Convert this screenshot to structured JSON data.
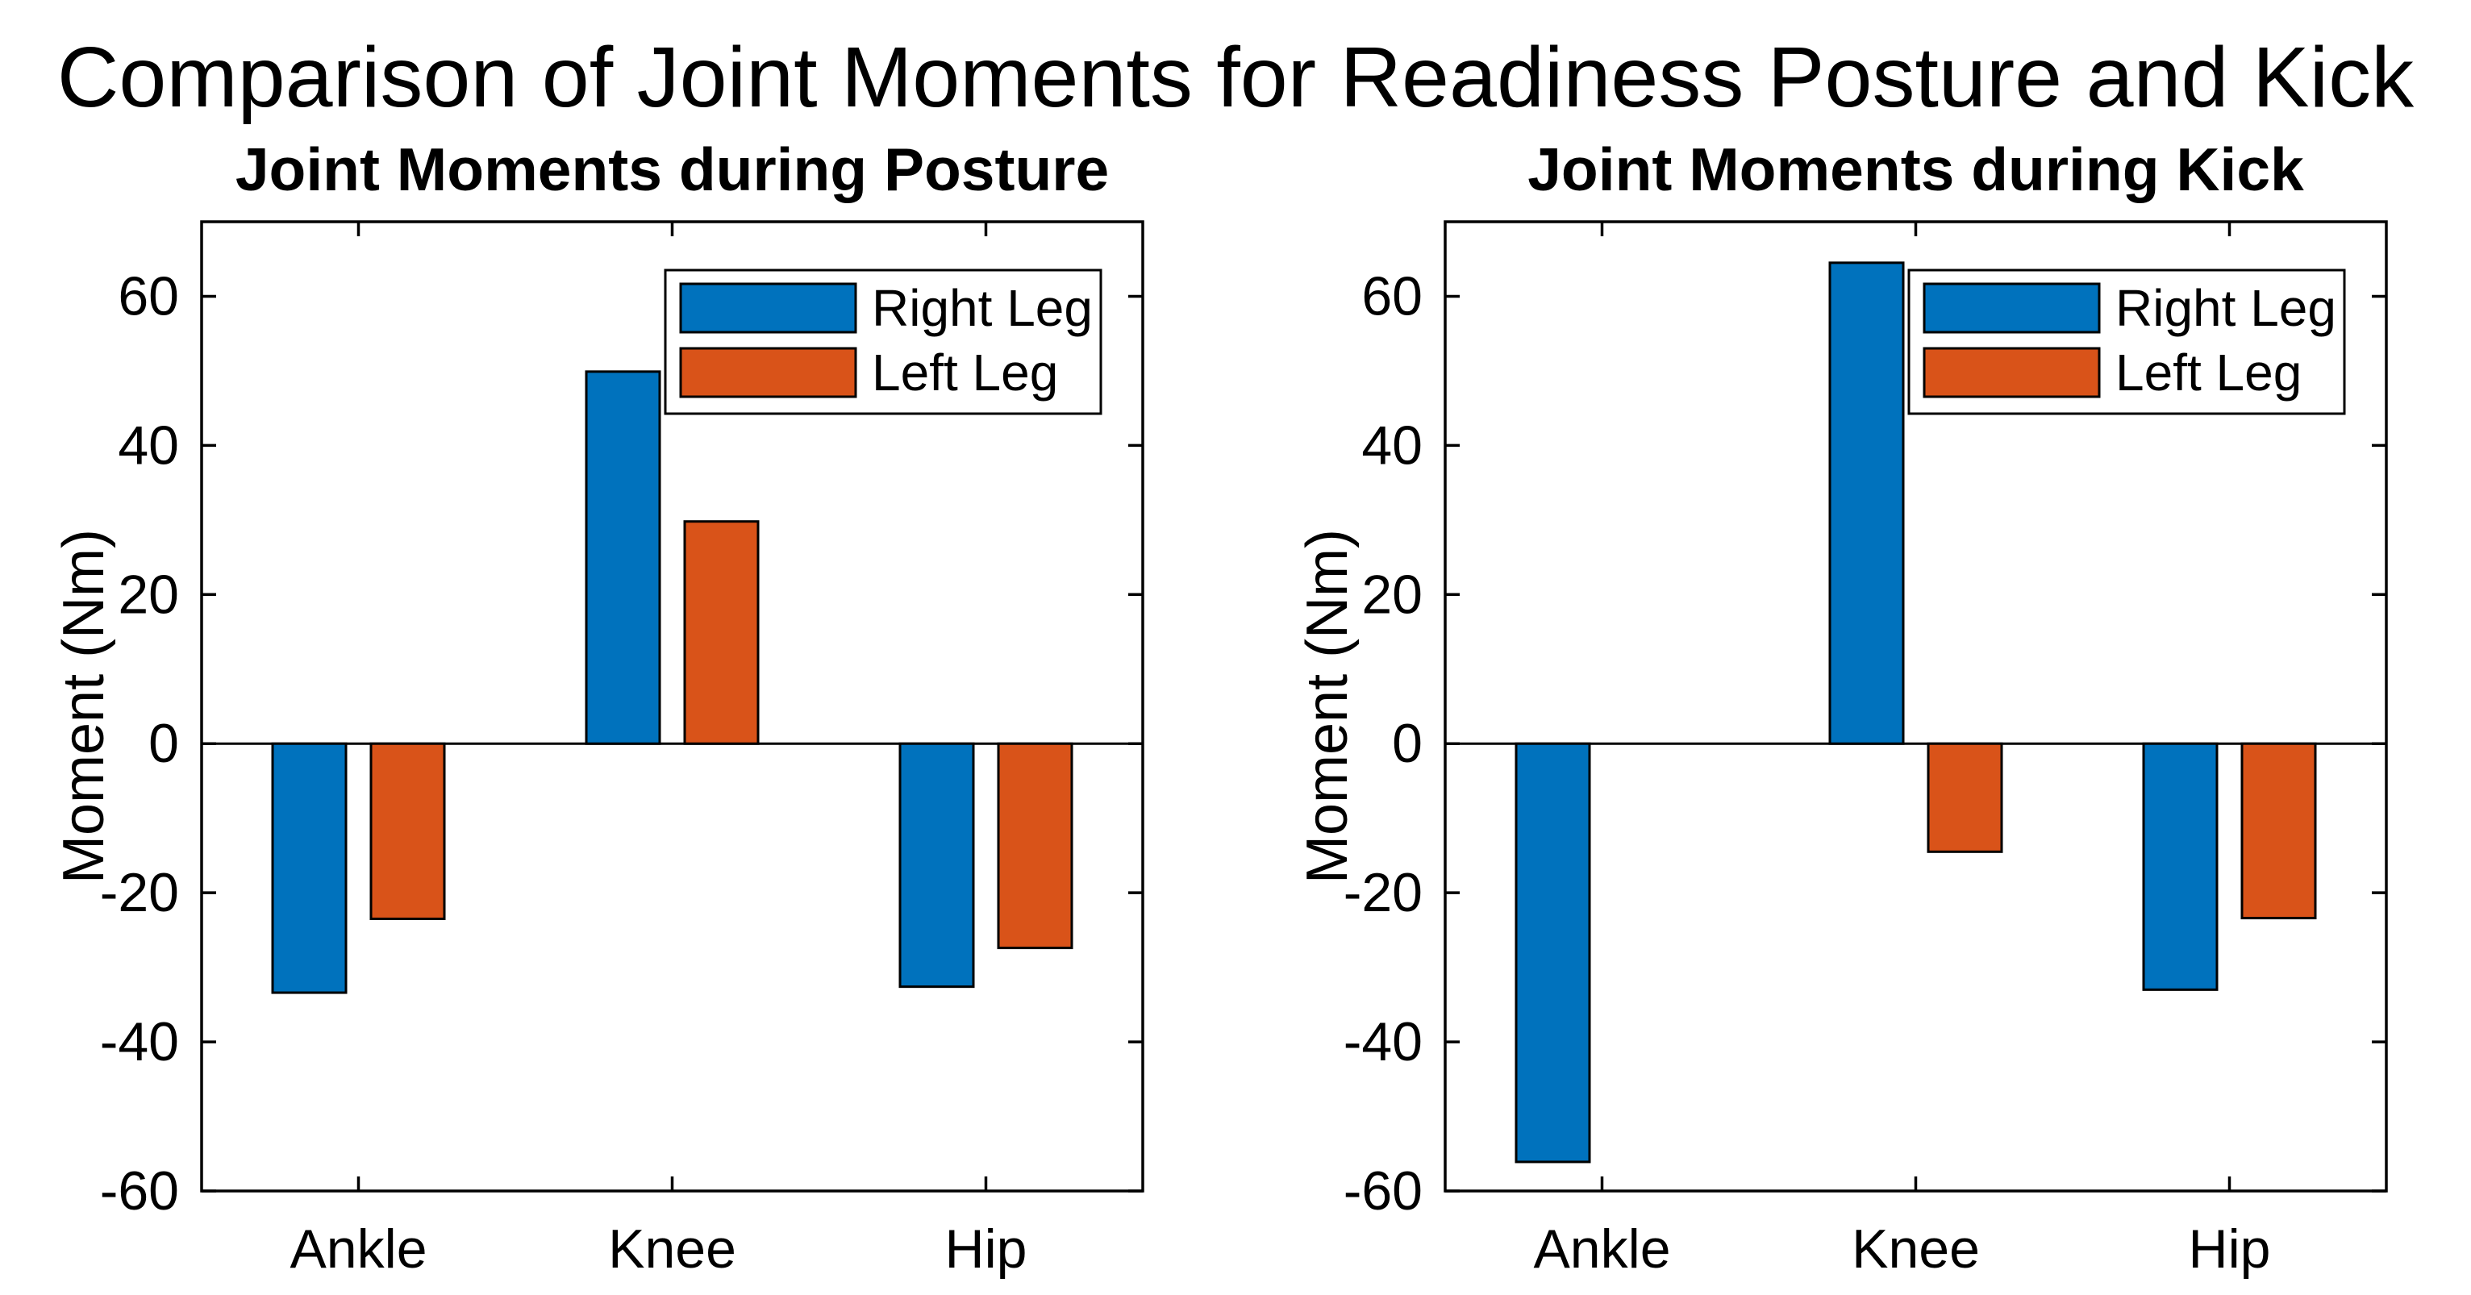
{
  "figure_title": "Comparison of Joint Moments for Readiness Posture and Kick",
  "colors": {
    "right_leg": "#0072BD",
    "left_leg": "#D95319",
    "axis": "#000000",
    "bar_edge": "#000000",
    "background": "#FFFFFF",
    "legend_background": "#FFFFFF"
  },
  "axes": {
    "ylabel": "Moment (Nm)",
    "yticks": [
      60,
      40,
      20,
      0,
      -20,
      -40,
      -60
    ],
    "ylim": [
      -60,
      70
    ],
    "grid": "off",
    "box": "on"
  },
  "legend": {
    "position": "upper right",
    "items": [
      {
        "label": "Right Leg",
        "color_key": "right_leg"
      },
      {
        "label": "Left Leg",
        "color_key": "left_leg"
      }
    ]
  },
  "chart_data": [
    {
      "type": "bar",
      "title": "Joint Moments during Posture",
      "categories": [
        "Ankle",
        "Knee",
        "Hip"
      ],
      "series": [
        {
          "name": "Right Leg",
          "values": [
            -33.4,
            49.9,
            -32.6
          ]
        },
        {
          "name": "Left Leg",
          "values": [
            -23.5,
            29.8,
            -27.4
          ]
        }
      ],
      "xlabel": "",
      "ylabel": "Moment (Nm)",
      "ylim": [
        -60,
        70
      ],
      "legend_position": "upper right"
    },
    {
      "type": "bar",
      "title": "Joint Moments during Kick",
      "categories": [
        "Ankle",
        "Knee",
        "Hip"
      ],
      "series": [
        {
          "name": "Right Leg",
          "values": [
            -56.1,
            64.5,
            -33.0
          ]
        },
        {
          "name": "Left Leg",
          "values": [
            0,
            -14.5,
            -23.4
          ]
        }
      ],
      "xlabel": "",
      "ylabel": "Moment (Nm)",
      "ylim": [
        -60,
        70
      ],
      "legend_position": "upper right"
    }
  ]
}
